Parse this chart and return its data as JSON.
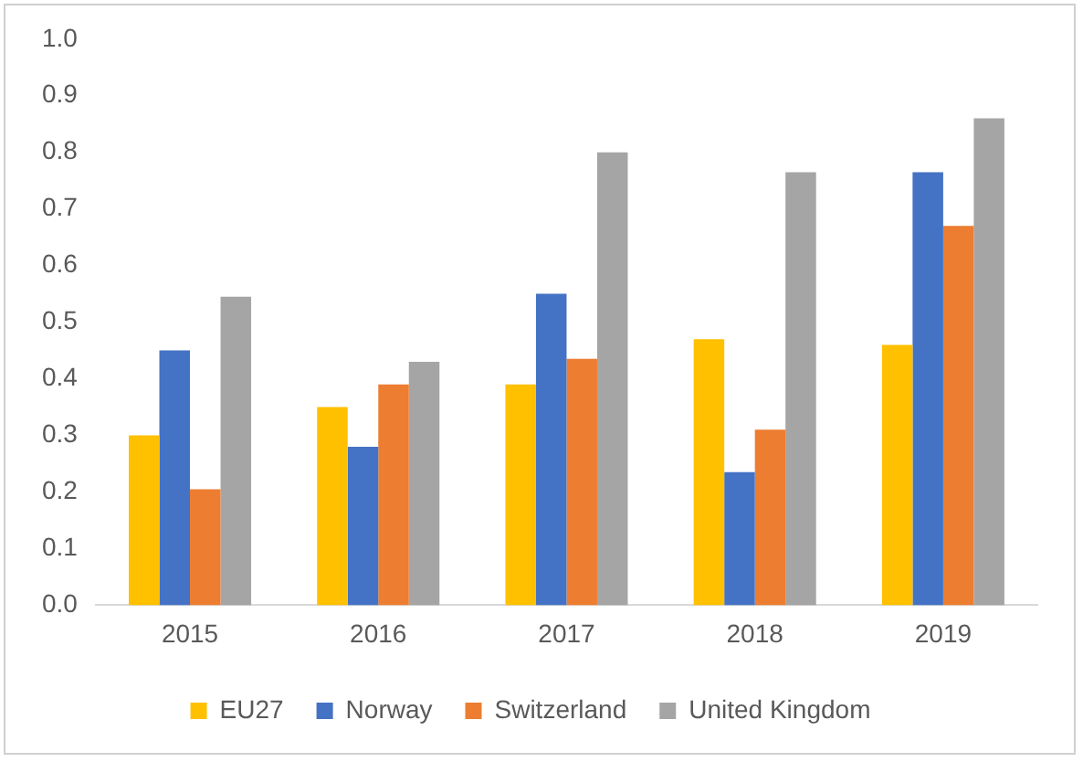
{
  "chart_data": {
    "type": "bar",
    "categories": [
      "2015",
      "2016",
      "2017",
      "2018",
      "2019"
    ],
    "series": [
      {
        "name": "EU27",
        "color": "#ffc000",
        "values": [
          0.3,
          0.35,
          0.39,
          0.47,
          0.46
        ]
      },
      {
        "name": "Norway",
        "color": "#4472c4",
        "values": [
          0.45,
          0.28,
          0.55,
          0.235,
          0.765
        ]
      },
      {
        "name": "Switzerland",
        "color": "#ed7d31",
        "values": [
          0.205,
          0.39,
          0.435,
          0.31,
          0.67
        ]
      },
      {
        "name": "United Kingdom",
        "color": "#a5a5a5",
        "values": [
          0.545,
          0.43,
          0.8,
          0.765,
          0.86
        ]
      }
    ],
    "ylim": [
      0,
      1
    ],
    "yticks": [
      {
        "value": 0,
        "label": "0.0"
      },
      {
        "value": 0.1,
        "label": "0.1"
      },
      {
        "value": 0.2,
        "label": "0.2"
      },
      {
        "value": 0.3,
        "label": "0.3"
      },
      {
        "value": 0.4,
        "label": "0.4"
      },
      {
        "value": 0.5,
        "label": "0.5"
      },
      {
        "value": 0.6,
        "label": "0.6"
      },
      {
        "value": 0.7,
        "label": "0.7"
      },
      {
        "value": 0.8,
        "label": "0.8"
      },
      {
        "value": 0.9,
        "label": "0.9"
      },
      {
        "value": 1,
        "label": "1.0"
      }
    ],
    "grid": false,
    "legend": "bottom"
  }
}
